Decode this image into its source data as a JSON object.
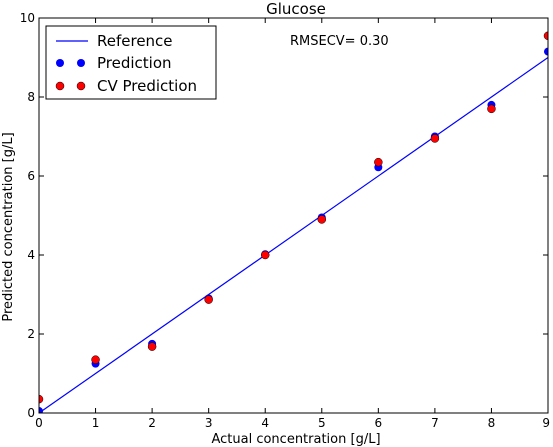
{
  "chart_data": {
    "type": "scatter",
    "title": "Glucose",
    "xlabel": "Actual concentration [g/L]",
    "ylabel": "Predicted concentration [g/L]",
    "xlim": [
      0,
      9
    ],
    "ylim": [
      0,
      10
    ],
    "xticks": [
      "0",
      "1",
      "2",
      "3",
      "4",
      "5",
      "6",
      "7",
      "8",
      "9"
    ],
    "yticks": [
      "0",
      "2",
      "4",
      "6",
      "8",
      "10"
    ],
    "grid": false,
    "legend_position": "top-left",
    "annotation": "RMSECV= 0.30",
    "reference": {
      "name": "Reference",
      "color": "#0000ff",
      "x": [
        0,
        9
      ],
      "y": [
        0,
        9
      ]
    },
    "series": [
      {
        "name": "Prediction",
        "color": "#0000ff",
        "x": [
          0,
          1,
          2,
          3,
          4,
          5,
          6,
          7,
          8,
          9
        ],
        "y": [
          0.05,
          1.25,
          1.75,
          2.9,
          4.02,
          4.95,
          6.22,
          7.0,
          7.8,
          9.15
        ]
      },
      {
        "name": "CV Prediction",
        "color": "#ff0000",
        "x": [
          0,
          1,
          2,
          3,
          4,
          5,
          6,
          7,
          8,
          9
        ],
        "y": [
          0.35,
          1.35,
          1.68,
          2.87,
          4.0,
          4.9,
          6.35,
          6.95,
          7.7,
          9.55
        ]
      }
    ]
  }
}
